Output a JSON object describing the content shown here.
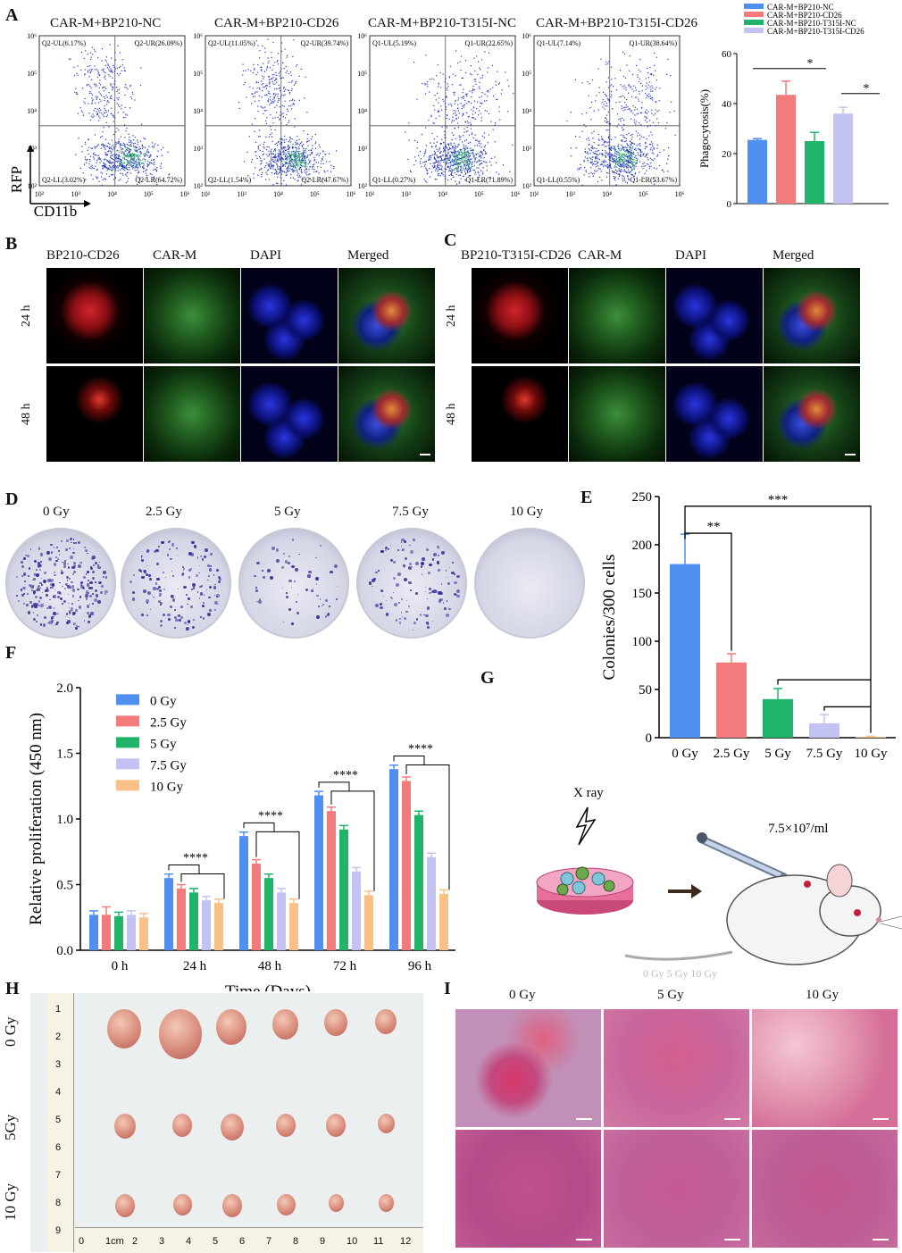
{
  "panel_labels": {
    "A": "A",
    "B": "B",
    "C": "C",
    "D": "D",
    "E": "E",
    "F": "F",
    "G": "G",
    "H": "H",
    "I": "I"
  },
  "flow": {
    "ylabel": "RFP",
    "xlabel": "CD11b",
    "log_ticks": [
      "10²",
      "10³",
      "10⁴",
      "10⁵",
      "10⁶"
    ],
    "plots": [
      {
        "title": "CAR-M+BP210-NC",
        "UL": "Q2-UL(6.17%)",
        "UR": "Q2-UR(26.09%)",
        "LL": "Q2-LL(3.02%)",
        "LR": "Q2-LR(64.72%)"
      },
      {
        "title": "CAR-M+BP210-CD26",
        "UL": "Q2-UL(11.05%)",
        "UR": "Q2-UR(39.74%)",
        "LL": "Q2-LL(1.54%)",
        "LR": "Q2-LR(47.67%)"
      },
      {
        "title": "CAR-M+BP210-T315I-NC",
        "UL": "Q1-UL(5.19%)",
        "UR": "Q1-UR(22.65%)",
        "LL": "Q1-LL(0.27%)",
        "LR": "Q1-LR(71.89%)"
      },
      {
        "title": "CAR-M+BP210-T315I-CD26",
        "UL": "Q1-UL(7.14%)",
        "UR": "Q1-UR(38.64%)",
        "LL": "Q1-LL(0.55%)",
        "LR": "Q1-LR(53.67%)"
      }
    ]
  },
  "panel_B": {
    "headers": [
      "BP210-CD26",
      "CAR-M",
      "DAPI",
      "Merged"
    ],
    "rows": [
      "24 h",
      "48 h"
    ]
  },
  "panel_C": {
    "headers": [
      "BP210-T315I-CD26",
      "CAR-M",
      "DAPI",
      "Merged"
    ],
    "rows": [
      "24 h",
      "48 h"
    ]
  },
  "panel_D": {
    "doses": [
      "0 Gy",
      "2.5 Gy",
      "5 Gy",
      "7.5 Gy",
      "10 Gy"
    ]
  },
  "panel_G": {
    "xray": "X ray",
    "concentration": "7.5×10⁷/ml",
    "faint": "0 Gy       5 Gy       10 Gy"
  },
  "panel_H": {
    "rows": [
      "0 Gy",
      "5Gy",
      "10 Gy"
    ],
    "ruler": [
      "0",
      "1cm",
      "2",
      "3",
      "4",
      "5",
      "6",
      "7",
      "8",
      "9",
      "10",
      "11",
      "12"
    ],
    "ruler_side": [
      "1",
      "2",
      "3",
      "4",
      "5",
      "6",
      "7",
      "8",
      "9"
    ]
  },
  "panel_I": {
    "cols": [
      "0 Gy",
      "5 Gy",
      "10 Gy"
    ]
  },
  "colors": {
    "blue": "#4f8fef",
    "red": "#f47b7b",
    "green": "#20b36a",
    "lavender": "#c3c3f3",
    "orange": "#f9c088"
  },
  "chart_data": [
    {
      "type": "bar",
      "panel": "A",
      "categories": [
        "CAR-M+BP210-NC",
        "CAR-M+BP210-CD26",
        "CAR-M+BP210-T315I-NC",
        "CAR-M+BP210-T315I-CD26"
      ],
      "values": [
        25.5,
        43.5,
        25,
        36
      ],
      "errors": [
        0.5,
        5.5,
        3.5,
        2.5
      ],
      "ylabel": "Phagocytosis(%)",
      "ylim": [
        0,
        60
      ],
      "yticks": [
        "0",
        "20",
        "40",
        "60"
      ],
      "significance": [
        "*",
        "*"
      ],
      "legend": "top"
    },
    {
      "type": "bar",
      "panel": "E",
      "categories": [
        "0 Gy",
        "2.5 Gy",
        "5 Gy",
        "7.5 Gy",
        "10 Gy"
      ],
      "values": [
        180,
        78,
        40,
        15,
        1
      ],
      "errors": [
        31,
        9,
        11,
        9,
        0.5
      ],
      "ylabel": "Colonies/300 cells",
      "ylim": [
        0,
        250
      ],
      "yticks": [
        "0",
        "50",
        "100",
        "150",
        "200",
        "250"
      ],
      "significance": [
        "**",
        "***"
      ]
    },
    {
      "type": "bar",
      "panel": "F",
      "categories": [
        "0 h",
        "24 h",
        "48 h",
        "72 h",
        "96  h"
      ],
      "series": [
        {
          "name": "0 Gy",
          "values": [
            0.27,
            0.55,
            0.87,
            1.18,
            1.38
          ]
        },
        {
          "name": "2.5 Gy",
          "values": [
            0.27,
            0.47,
            0.66,
            1.06,
            1.29
          ]
        },
        {
          "name": "5 Gy",
          "values": [
            0.26,
            0.44,
            0.55,
            0.92,
            1.03
          ]
        },
        {
          "name": "7.5 Gy",
          "values": [
            0.27,
            0.38,
            0.44,
            0.6,
            0.71
          ]
        },
        {
          "name": "10 Gy",
          "values": [
            0.25,
            0.36,
            0.36,
            0.42,
            0.43
          ]
        }
      ],
      "xlabel": "Time (Days)",
      "ylabel": "Relative proliferation (450 nm)",
      "ylim": [
        0,
        2.0
      ],
      "yticks": [
        "0.0",
        "0.5",
        "1.0",
        "1.5",
        "2.0"
      ],
      "significance": [
        "****",
        "****",
        "****",
        "****"
      ],
      "legend": "top-left"
    }
  ]
}
